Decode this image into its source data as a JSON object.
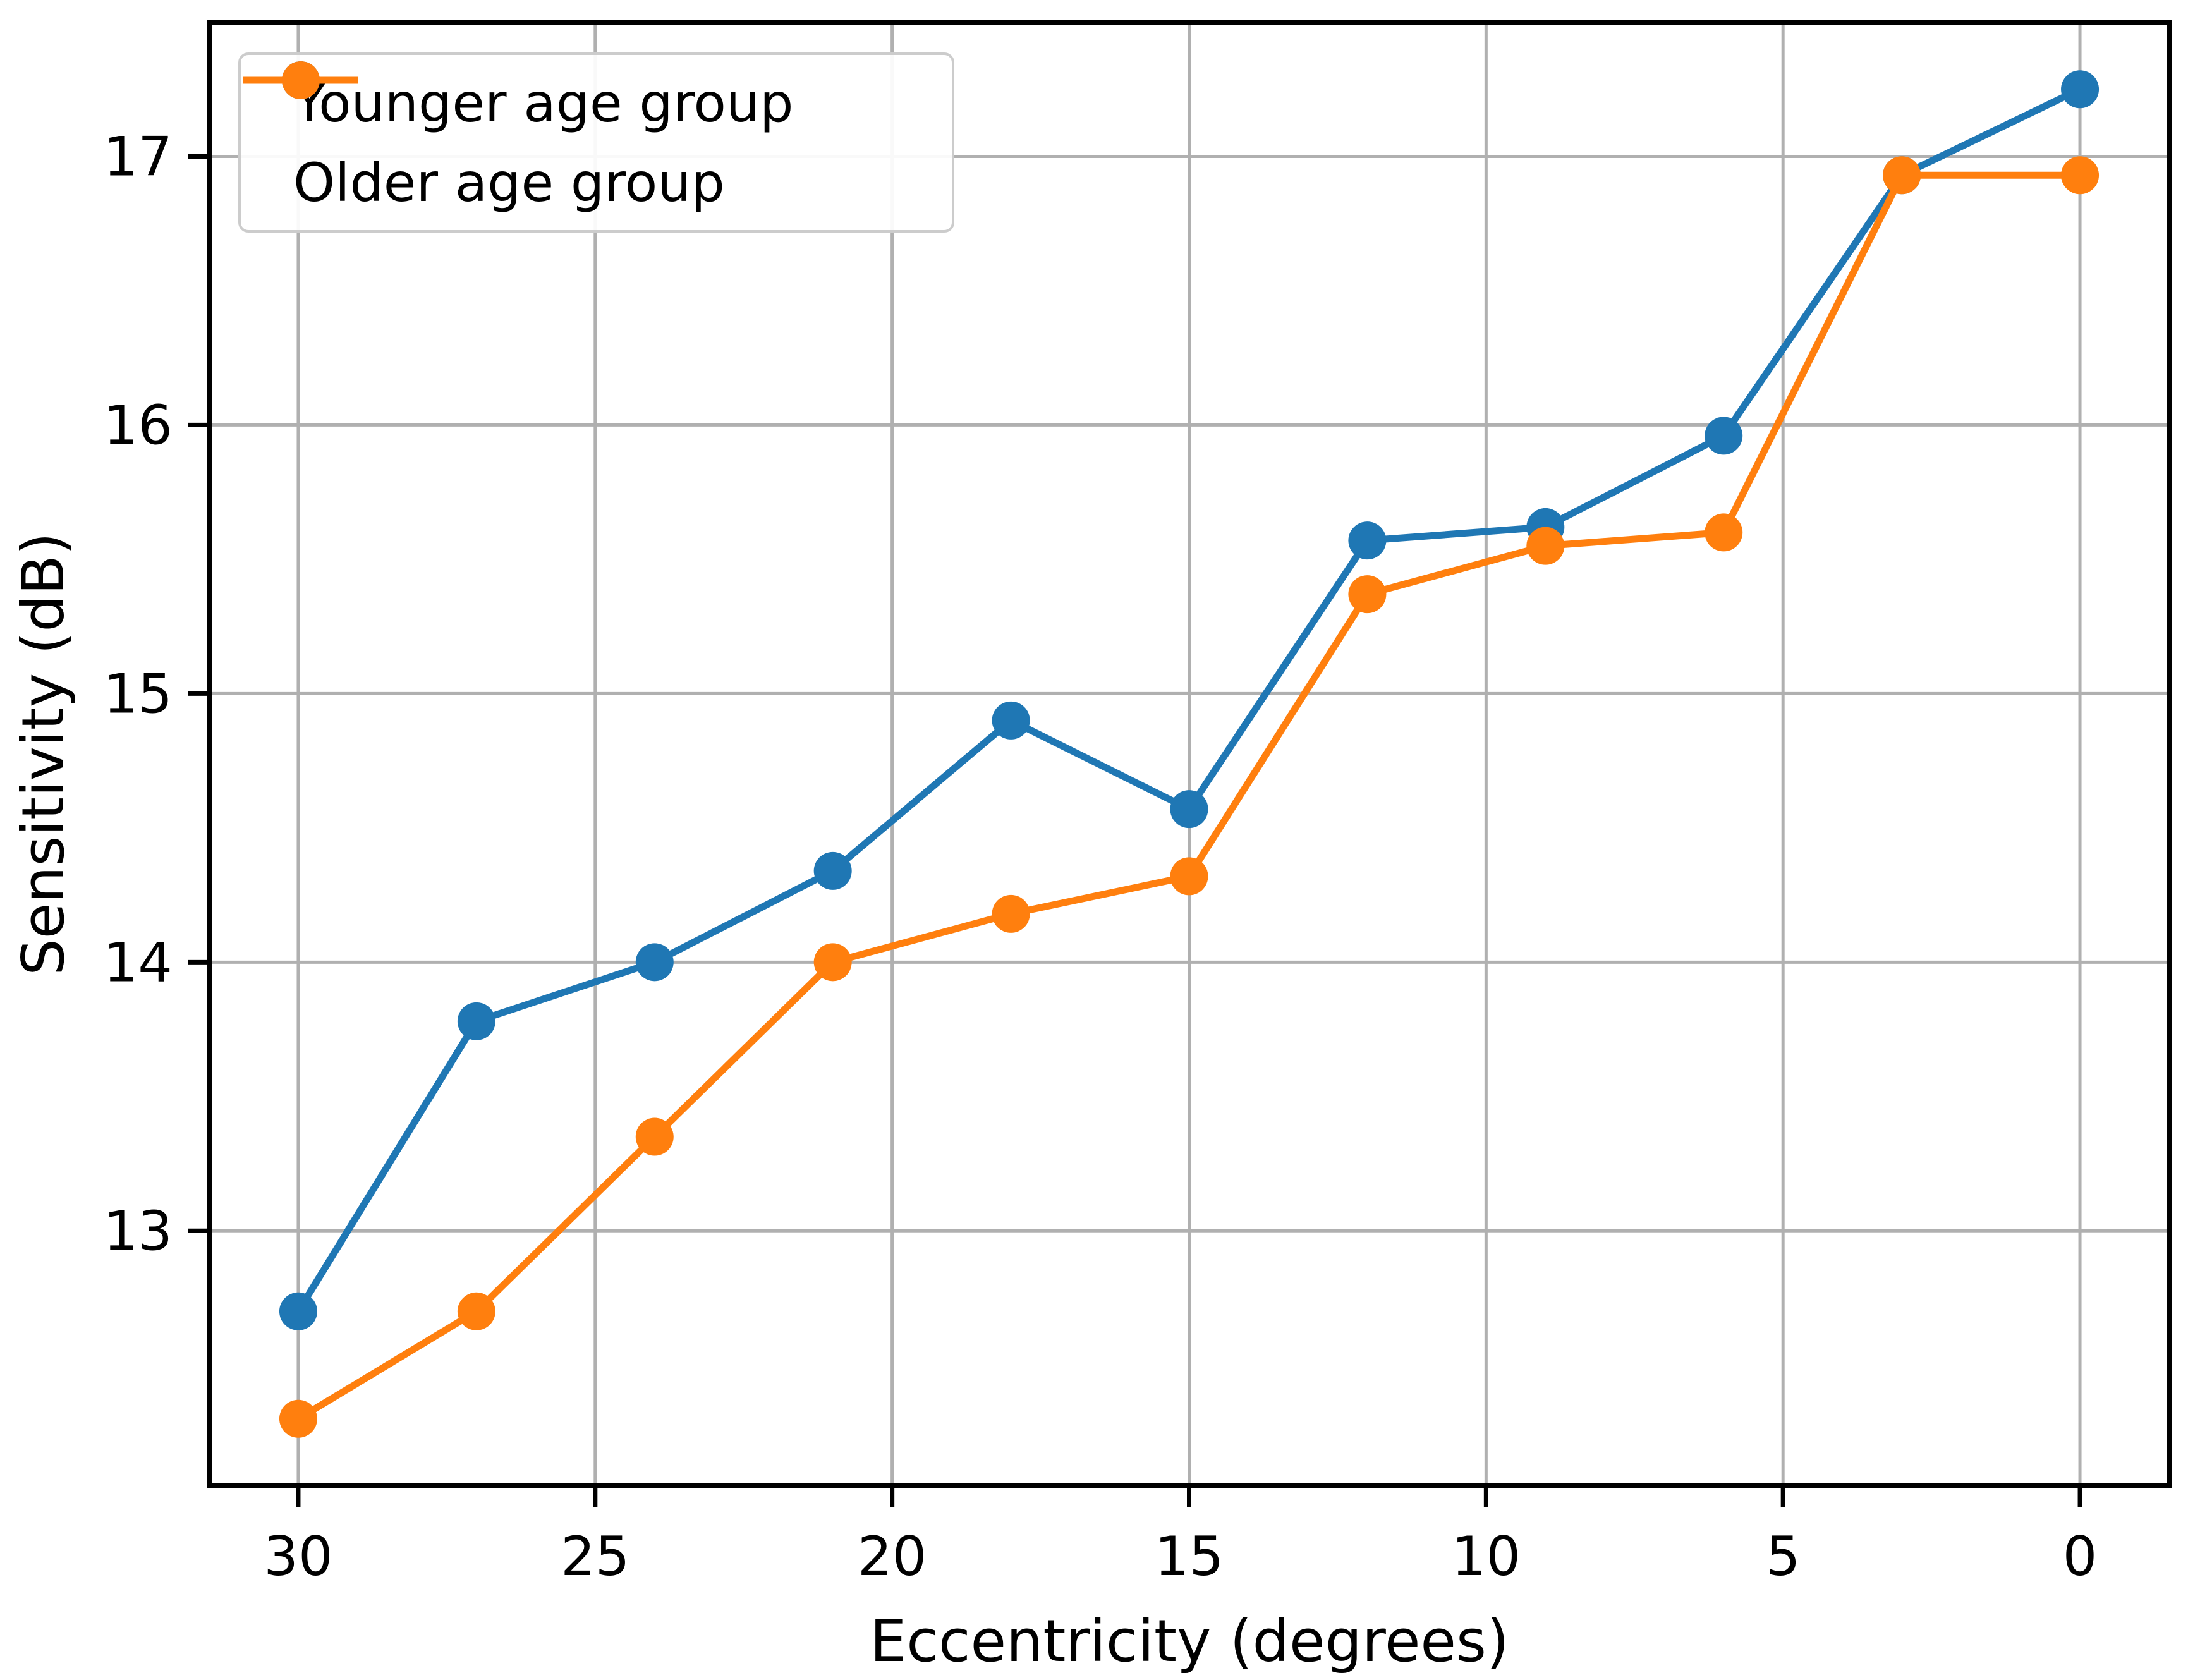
{
  "figure": {
    "background": "#ffffff"
  },
  "chart_data": {
    "type": "line",
    "title": "",
    "xlabel": "Eccentricity (degrees)",
    "ylabel": "Sensitivity (dB)",
    "x": [
      30,
      27,
      24,
      21,
      18,
      15,
      12,
      9,
      6,
      3,
      0
    ],
    "series": [
      {
        "name": "Younger age group",
        "color": "#1f77b4",
        "values": [
          12.7,
          13.78,
          14.0,
          14.34,
          14.9,
          14.57,
          15.57,
          15.62,
          15.96,
          16.93,
          17.25
        ]
      },
      {
        "name": "Older age group",
        "color": "#ff7f0e",
        "values": [
          12.3,
          12.7,
          13.35,
          14.0,
          14.18,
          14.32,
          15.37,
          15.55,
          15.6,
          16.93,
          16.93
        ]
      }
    ],
    "x_ticks": [
      30,
      25,
      20,
      15,
      10,
      5,
      0
    ],
    "y_ticks": [
      13,
      14,
      15,
      16,
      17
    ],
    "xlim": [
      31.5,
      -1.5
    ],
    "x_axis_inverted": true,
    "ylim": [
      12.05,
      17.5
    ],
    "grid": true,
    "grid_color": "#b0b0b0",
    "axis_color": "#000000",
    "text_color": "#000000",
    "legend_position": "upper left",
    "marker": "o"
  }
}
